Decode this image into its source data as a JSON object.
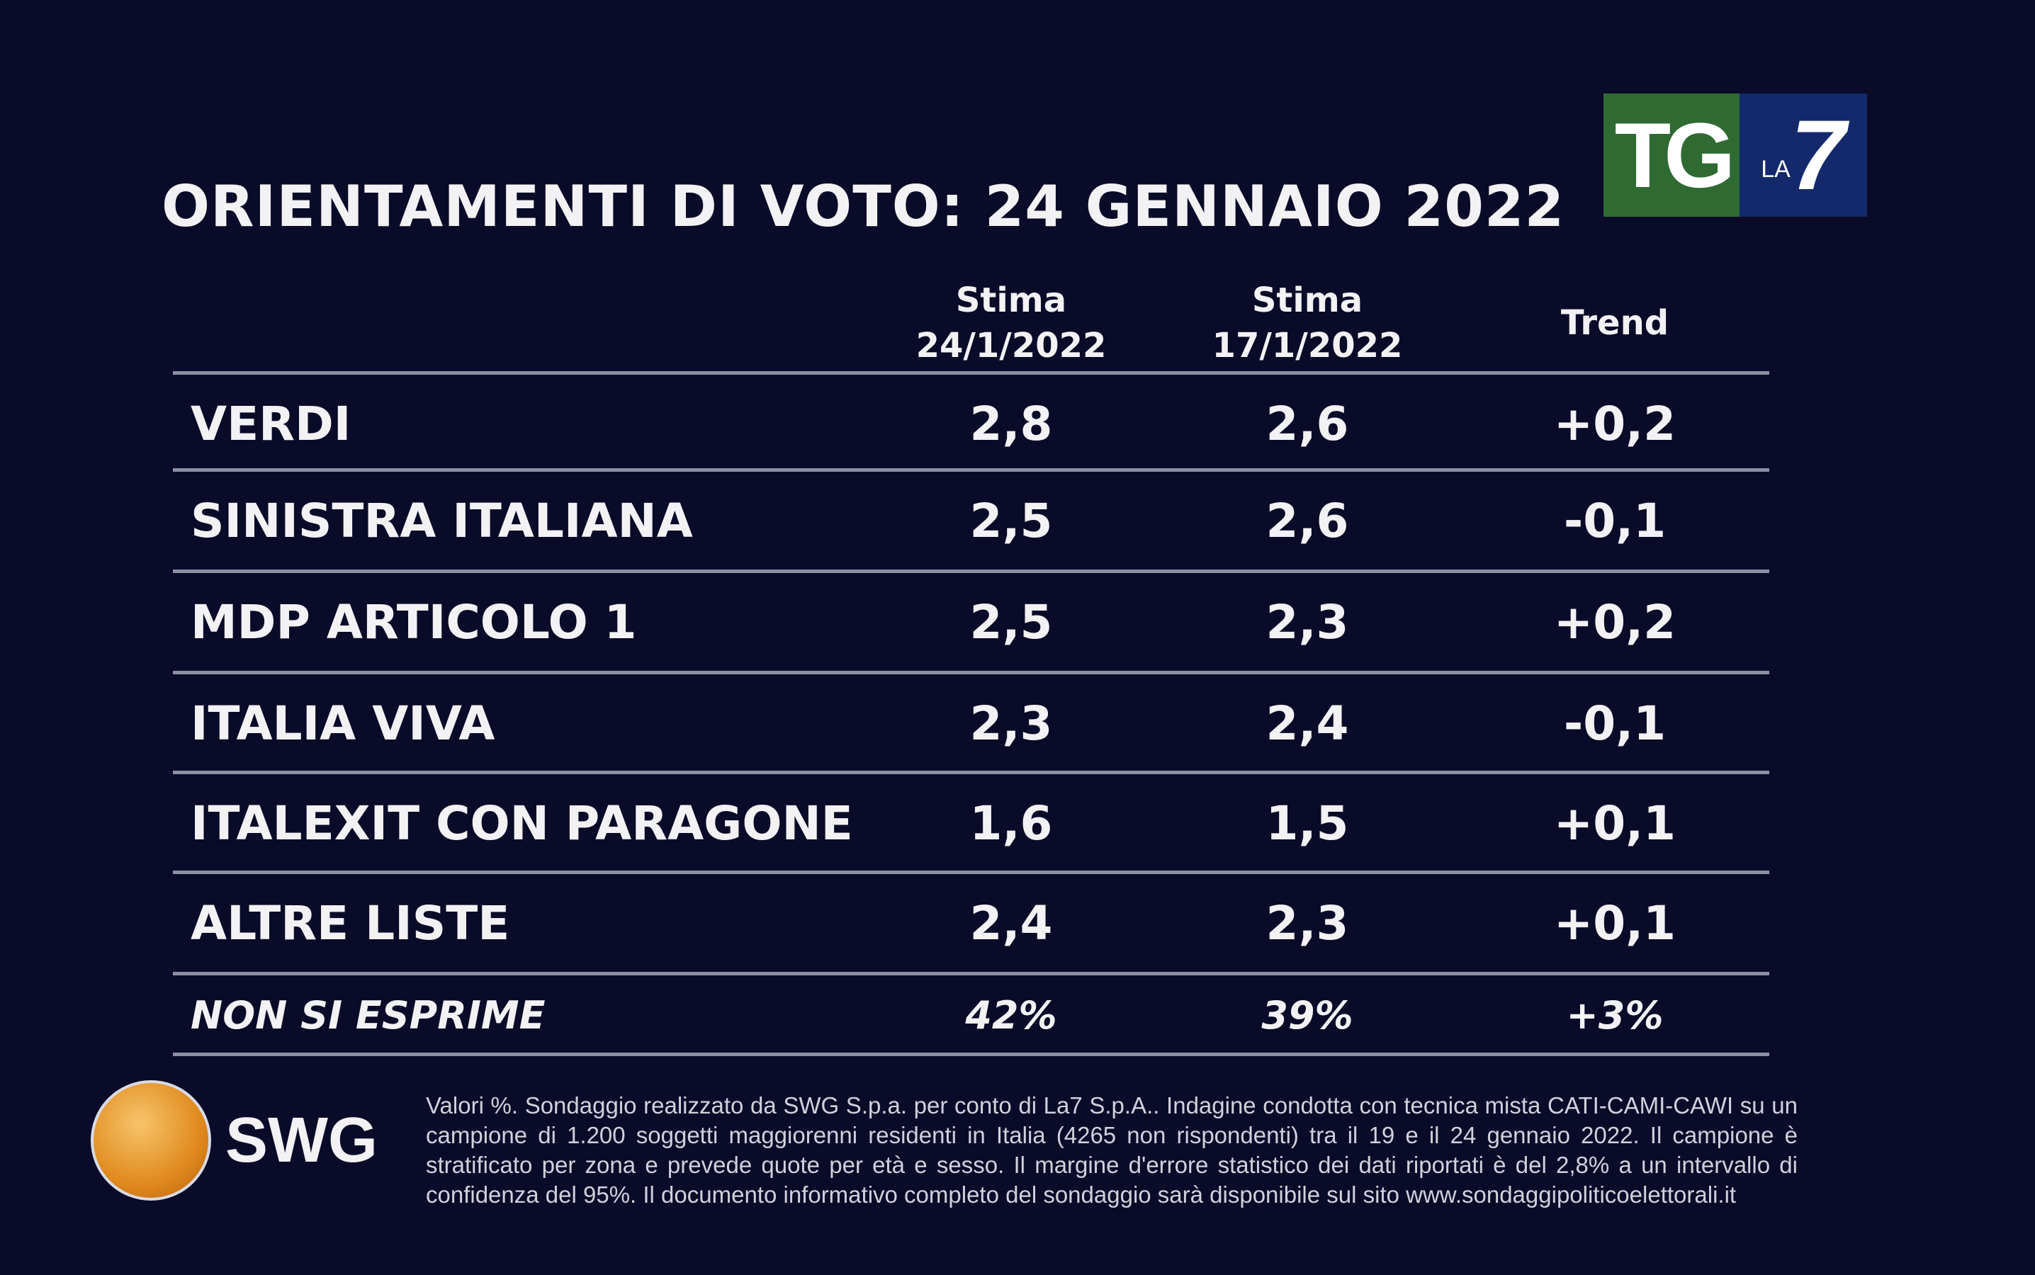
{
  "title": "ORIENTAMENTI DI VOTO: 24 GENNAIO 2022",
  "logo": {
    "tg": "TG",
    "la": "LA",
    "seven": "7"
  },
  "columns": [
    {
      "line1": "Stima",
      "line2": "24/1/2022"
    },
    {
      "line1": "Stima",
      "line2": "17/1/2022"
    },
    {
      "line1": "Trend",
      "line2": ""
    }
  ],
  "rows": [
    {
      "party": "VERDI",
      "v1": "2,8",
      "v2": "2,6",
      "trend": "+0,2"
    },
    {
      "party": "SINISTRA ITALIANA",
      "v1": "2,5",
      "v2": "2,6",
      "trend": "-0,1"
    },
    {
      "party": "MDP ARTICOLO 1",
      "v1": "2,5",
      "v2": "2,3",
      "trend": "+0,2"
    },
    {
      "party": "ITALIA VIVA",
      "v1": "2,3",
      "v2": "2,4",
      "trend": "-0,1"
    },
    {
      "party": "ITALEXIT CON PARAGONE",
      "v1": "1,6",
      "v2": "1,5",
      "trend": "+0,1"
    },
    {
      "party": "ALTRE LISTE",
      "v1": "2,4",
      "v2": "2,3",
      "trend": "+0,1"
    }
  ],
  "non_si_esprime": {
    "label": "NON SI ESPRIME",
    "v1": "42%",
    "v2": "39%",
    "trend": "+3%"
  },
  "swg": {
    "name": "SWG"
  },
  "footnote": "Valori %. Sondaggio realizzato da SWG S.p.a. per conto di La7 S.p.A.. Indagine condotta con tecnica mista CATI-CAMI-CAWI su un campione di 1.200 soggetti maggiorenni residenti in Italia (4265 non rispondenti) tra il 19 e il 24 gennaio 2022. Il campione è stratificato per zona e prevede quote per età e sesso. Il margine d'errore statistico dei dati riportati è del 2,8% a un intervallo di confidenza del 95%. Il documento informativo completo del sondaggio sarà disponibile sul sito www.sondaggipoliticoelettorali.it",
  "colors": {
    "background": "#0a0b28",
    "tg_green": "#2f6a32",
    "la7_blue": "#13296b",
    "swg_orange": "#e08a1e"
  }
}
